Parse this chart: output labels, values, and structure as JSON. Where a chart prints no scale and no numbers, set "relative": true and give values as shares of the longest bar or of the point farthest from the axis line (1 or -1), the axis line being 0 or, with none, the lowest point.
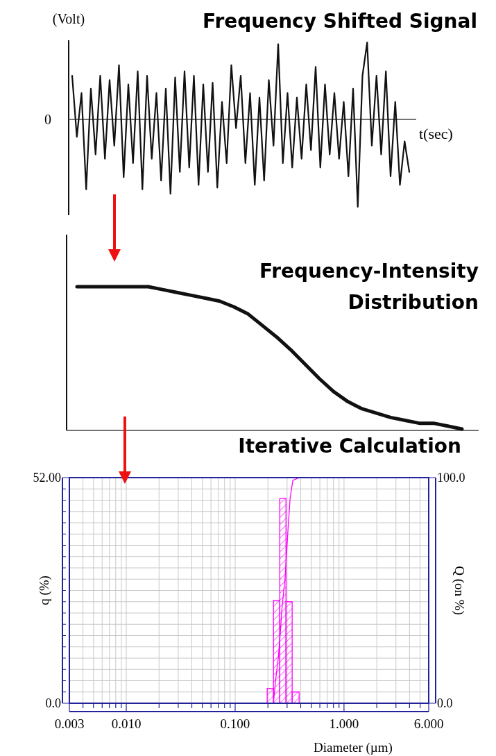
{
  "chart_data": [
    {
      "type": "line",
      "title": "Frequency Shifted Signal",
      "ylabel": "(Volt)",
      "xlabel": "t(sec)",
      "relative": true,
      "color": "#111111",
      "categories": [
        null,
        null,
        null,
        null,
        null,
        null,
        null,
        null,
        null,
        null,
        null,
        null,
        null,
        null,
        null,
        null,
        null,
        null,
        null,
        null,
        null,
        null,
        null,
        null,
        null,
        null,
        null,
        null,
        null,
        null,
        null,
        null,
        null,
        null,
        null,
        null,
        null,
        null,
        null,
        null,
        null,
        null,
        null,
        null,
        null,
        null,
        null,
        null,
        null,
        null,
        null,
        null,
        null,
        null,
        null,
        null,
        null,
        null,
        null,
        null,
        null,
        null,
        null,
        null,
        null,
        null,
        null,
        null,
        null,
        null,
        null,
        null,
        null
      ],
      "values": [
        0.5,
        -0.2,
        0.3,
        -0.8,
        0.35,
        -0.4,
        0.5,
        -0.45,
        0.45,
        -0.3,
        0.62,
        -0.66,
        0.4,
        -0.5,
        0.55,
        -0.8,
        0.5,
        -0.45,
        0.3,
        -0.7,
        0.35,
        -0.85,
        0.48,
        -0.6,
        0.55,
        -0.55,
        0.5,
        -0.75,
        0.4,
        -0.6,
        0.42,
        -0.78,
        0.2,
        -0.5,
        0.62,
        -0.1,
        0.5,
        -0.5,
        0.3,
        -0.75,
        0.25,
        -0.7,
        0.45,
        -0.3,
        0.86,
        -0.5,
        0.3,
        -0.55,
        0.25,
        -0.45,
        0.4,
        -0.35,
        0.6,
        -0.55,
        0.4,
        -0.4,
        0.3,
        -0.45,
        0.2,
        -0.65,
        0.35,
        -1,
        0.5,
        0.88,
        -0.3,
        0.5,
        -0.4,
        0.55,
        -0.65,
        0.2,
        -0.75,
        -0.25,
        -0.6
      ],
      "annotations": [
        "0"
      ]
    },
    {
      "type": "line",
      "title": "Frequency-Intensity Distribution",
      "relative": true,
      "color": "#111111",
      "categories": [
        null,
        null,
        null,
        null,
        null,
        null,
        null,
        null,
        null,
        null,
        null,
        null,
        null,
        null,
        null,
        null,
        null,
        null,
        null,
        null,
        null,
        null,
        null,
        null,
        null,
        null,
        null,
        null
      ],
      "values": [
        1.0,
        1.0,
        1.0,
        1.0,
        1.0,
        1.0,
        0.98,
        0.96,
        0.94,
        0.92,
        0.9,
        0.86,
        0.81,
        0.73,
        0.65,
        0.56,
        0.46,
        0.36,
        0.27,
        0.2,
        0.15,
        0.12,
        0.09,
        0.07,
        0.05,
        0.05,
        0.03,
        0.01
      ]
    },
    {
      "type": "histogram",
      "title": "Iterative Calculation",
      "xlabel": "Diameter (µm)",
      "ylabel": "q (%)",
      "y2label": "Q (on %)",
      "log": "x",
      "grid": true,
      "color": "#ff00ff",
      "bins": [
        0.197,
        0.225,
        0.257,
        0.293,
        0.334,
        0.387
      ],
      "values": [
        3.4,
        23.7,
        47.2,
        23.4,
        2.6
      ],
      "series": [
        {
          "type": "line",
          "axis": "y2",
          "color": "#ff00ff",
          "x": [
            0.225,
            0.235,
            0.249,
            0.26,
            0.268,
            0.288,
            0.306,
            0.32,
            0.339,
            0.387
          ],
          "values": [
            0,
            10,
            20,
            31,
            41,
            56,
            77,
            91,
            98.8,
            100
          ]
        }
      ],
      "xlim": [
        0.003,
        6
      ],
      "xticks": [
        {
          "value": 0.003,
          "label": "0.003"
        },
        {
          "value": 0.004,
          "label": null
        },
        {
          "value": 0.005,
          "label": null
        },
        {
          "value": 0.006,
          "label": null
        },
        {
          "value": 0.007,
          "label": null
        },
        {
          "value": 0.008,
          "label": null
        },
        {
          "value": 0.009,
          "label": null
        },
        {
          "value": 0.01,
          "label": "0.010"
        },
        {
          "value": 0.02,
          "label": null
        },
        {
          "value": 0.03,
          "label": null
        },
        {
          "value": 0.04,
          "label": null
        },
        {
          "value": 0.05,
          "label": null
        },
        {
          "value": 0.06,
          "label": null
        },
        {
          "value": 0.07,
          "label": null
        },
        {
          "value": 0.08,
          "label": null
        },
        {
          "value": 0.09,
          "label": null
        },
        {
          "value": 0.1,
          "label": "0.100"
        },
        {
          "value": 0.2,
          "label": null
        },
        {
          "value": 0.3,
          "label": null
        },
        {
          "value": 0.4,
          "label": null
        },
        {
          "value": 0.5,
          "label": null
        },
        {
          "value": 0.6,
          "label": null
        },
        {
          "value": 0.7,
          "label": null
        },
        {
          "value": 0.8,
          "label": null
        },
        {
          "value": 0.9,
          "label": null
        },
        {
          "value": 1,
          "label": "1.000"
        },
        {
          "value": 2,
          "label": null
        },
        {
          "value": 3,
          "label": null
        },
        {
          "value": 4,
          "label": null
        },
        {
          "value": 5,
          "label": null
        },
        {
          "value": 6,
          "label": "6.000"
        }
      ],
      "ylim": [
        0,
        52
      ],
      "yticks": [
        {
          "value": 0,
          "label": "0.0"
        },
        {
          "value": 2.6,
          "label": null
        },
        {
          "value": 5.2,
          "label": null
        },
        {
          "value": 7.8,
          "label": null
        },
        {
          "value": 10.4,
          "label": null
        },
        {
          "value": 13,
          "label": null
        },
        {
          "value": 15.6,
          "label": null
        },
        {
          "value": 18.2,
          "label": null
        },
        {
          "value": 20.8,
          "label": null
        },
        {
          "value": 23.4,
          "label": null
        },
        {
          "value": 26,
          "label": null
        },
        {
          "value": 28.6,
          "label": null
        },
        {
          "value": 31.2,
          "label": null
        },
        {
          "value": 33.8,
          "label": null
        },
        {
          "value": 36.4,
          "label": null
        },
        {
          "value": 39,
          "label": null
        },
        {
          "value": 41.6,
          "label": null
        },
        {
          "value": 44.2,
          "label": null
        },
        {
          "value": 46.8,
          "label": null
        },
        {
          "value": 49.4,
          "label": null
        },
        {
          "value": 52,
          "label": "52.00"
        }
      ],
      "y2lim": [
        0,
        100
      ],
      "y2ticks": [
        {
          "value": 0,
          "label": "0.0"
        },
        {
          "value": 100,
          "label": "100.0"
        }
      ]
    }
  ]
}
